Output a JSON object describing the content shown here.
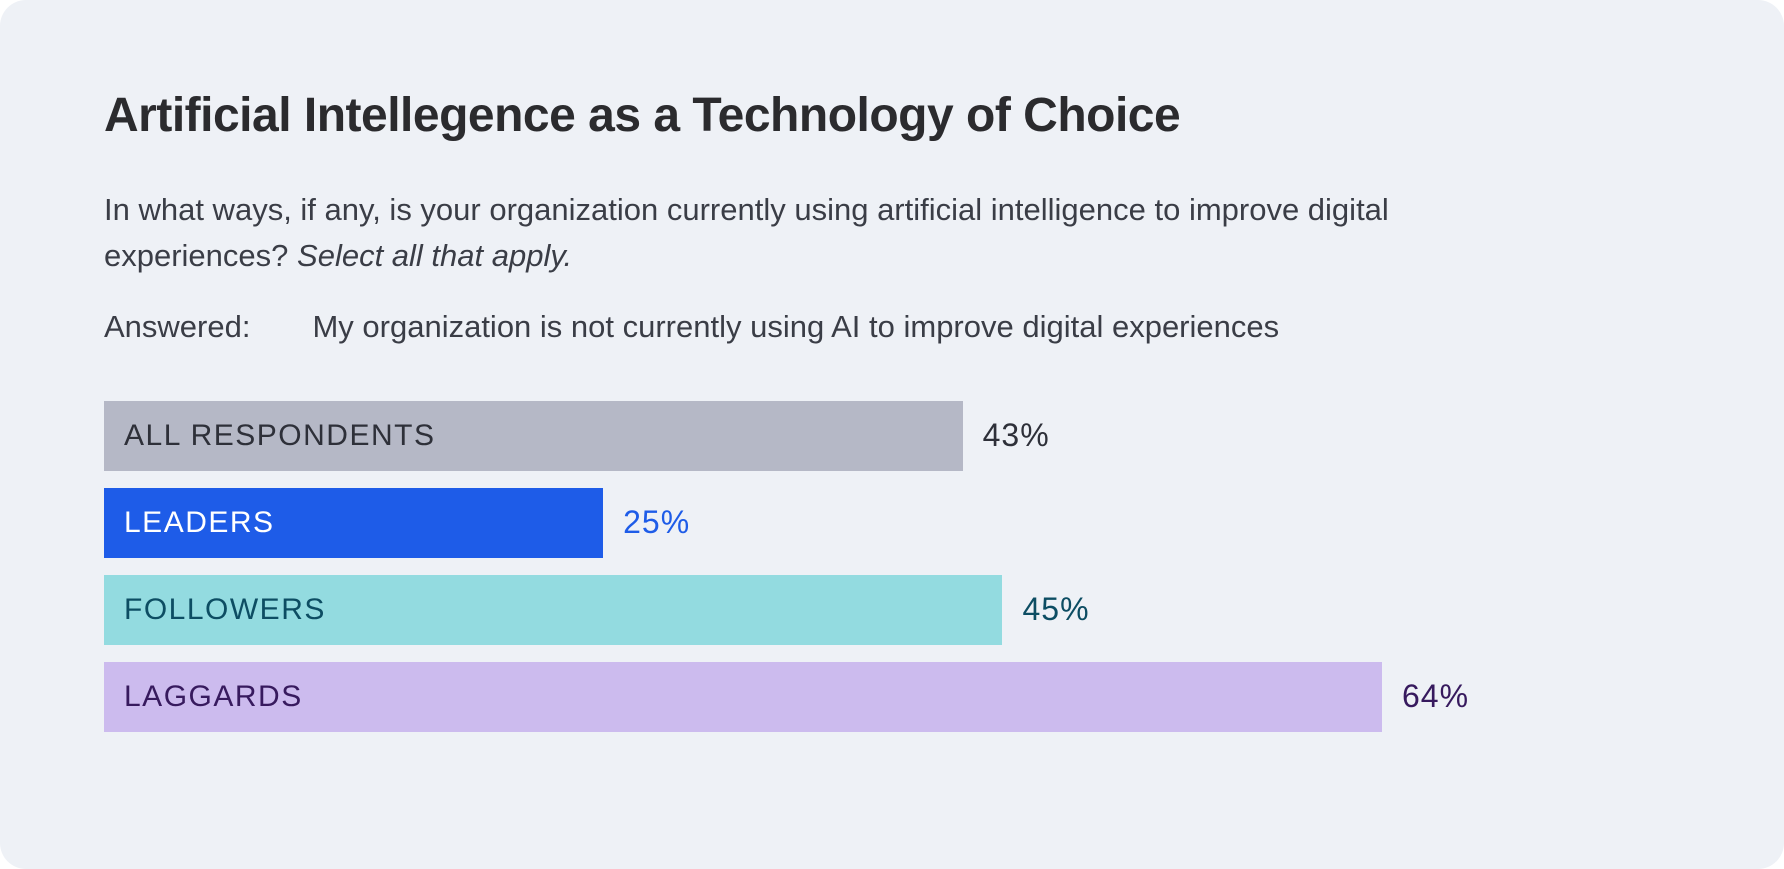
{
  "card": {
    "title": "Artificial Intellegence as a Technology of Choice",
    "question_text": "In what ways, if any, is your organization currently using artificial intelligence to improve digital experiences?",
    "question_italic": "Select all that apply.",
    "answered_label": "Answered:",
    "answered_text": "My organization is not currently using AI to improve digital experiences"
  },
  "chart_data": {
    "type": "bar",
    "orientation": "horizontal",
    "title": "Artificial Intellegence as a Technology of Choice",
    "categories": [
      "ALL RESPONDENTS",
      "LEADERS",
      "FOLLOWERS",
      "LAGGARDS"
    ],
    "values": [
      43,
      25,
      45,
      64
    ],
    "value_labels": [
      "43%",
      "25%",
      "45%",
      "64%"
    ],
    "xlim": [
      0,
      100
    ],
    "grid": false,
    "legend": false,
    "bar_colors": [
      "#b5b8c6",
      "#1e5ce8",
      "#93dbe0",
      "#ccbbee"
    ],
    "label_colors": [
      "#2e3039",
      "#ffffff",
      "#0d4d63",
      "#371a5e"
    ],
    "value_colors": [
      "#2e3039",
      "#1e5ce8",
      "#0d4d63",
      "#371a5e"
    ]
  }
}
